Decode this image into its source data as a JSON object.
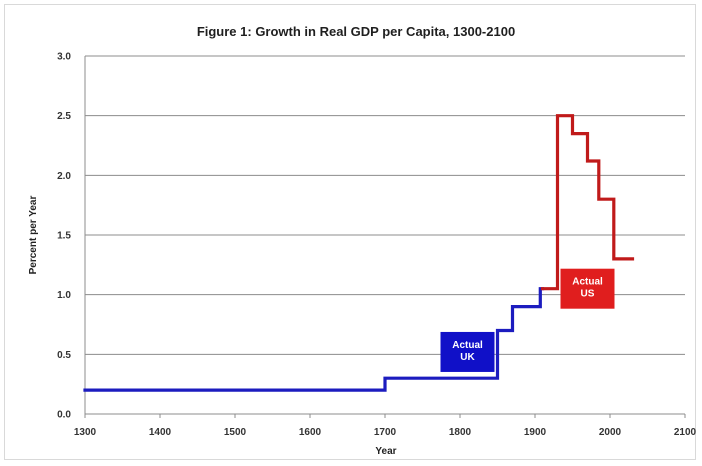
{
  "chart_data": {
    "type": "line",
    "title": "Figure 1: Growth in Real GDP per Capita, 1300-2100",
    "xlabel": "Year",
    "ylabel": "Percent per Year",
    "xlim": [
      1300,
      2100
    ],
    "ylim": [
      0,
      3.0
    ],
    "x_ticks": [
      1300,
      1400,
      1500,
      1600,
      1700,
      1800,
      1900,
      2000,
      2100
    ],
    "y_ticks": [
      "0.0",
      "0.5",
      "1.0",
      "1.5",
      "2.0",
      "2.5",
      "3.0"
    ],
    "grid": true,
    "legend": "none",
    "series": [
      {
        "label": "Actual UK",
        "color": "#1c1cbf",
        "step": true,
        "points": [
          [
            1300,
            0.2
          ],
          [
            1700,
            0.2
          ],
          [
            1700,
            0.3
          ],
          [
            1850,
            0.3
          ],
          [
            1850,
            0.7
          ],
          [
            1870,
            0.7
          ],
          [
            1870,
            0.9
          ],
          [
            1907,
            0.9
          ],
          [
            1907,
            1.05
          ],
          [
            1910,
            1.05
          ]
        ]
      },
      {
        "label": "Actual US",
        "color": "#c01a1a",
        "step": true,
        "points": [
          [
            1910,
            1.05
          ],
          [
            1930,
            1.05
          ],
          [
            1930,
            2.5
          ],
          [
            1950,
            2.5
          ],
          [
            1950,
            2.35
          ],
          [
            1970,
            2.35
          ],
          [
            1970,
            2.12
          ],
          [
            1985,
            2.12
          ],
          [
            1985,
            1.8
          ],
          [
            2005,
            1.8
          ],
          [
            2005,
            1.3
          ],
          [
            2030,
            1.3
          ]
        ]
      }
    ],
    "annotations": [
      {
        "text": "Actual\nUK",
        "x": 1810,
        "y": 0.52,
        "bg": "#1010c8"
      },
      {
        "text": "Actual\nUS",
        "x": 1970,
        "y": 1.05,
        "bg": "#e01e1e"
      }
    ]
  }
}
